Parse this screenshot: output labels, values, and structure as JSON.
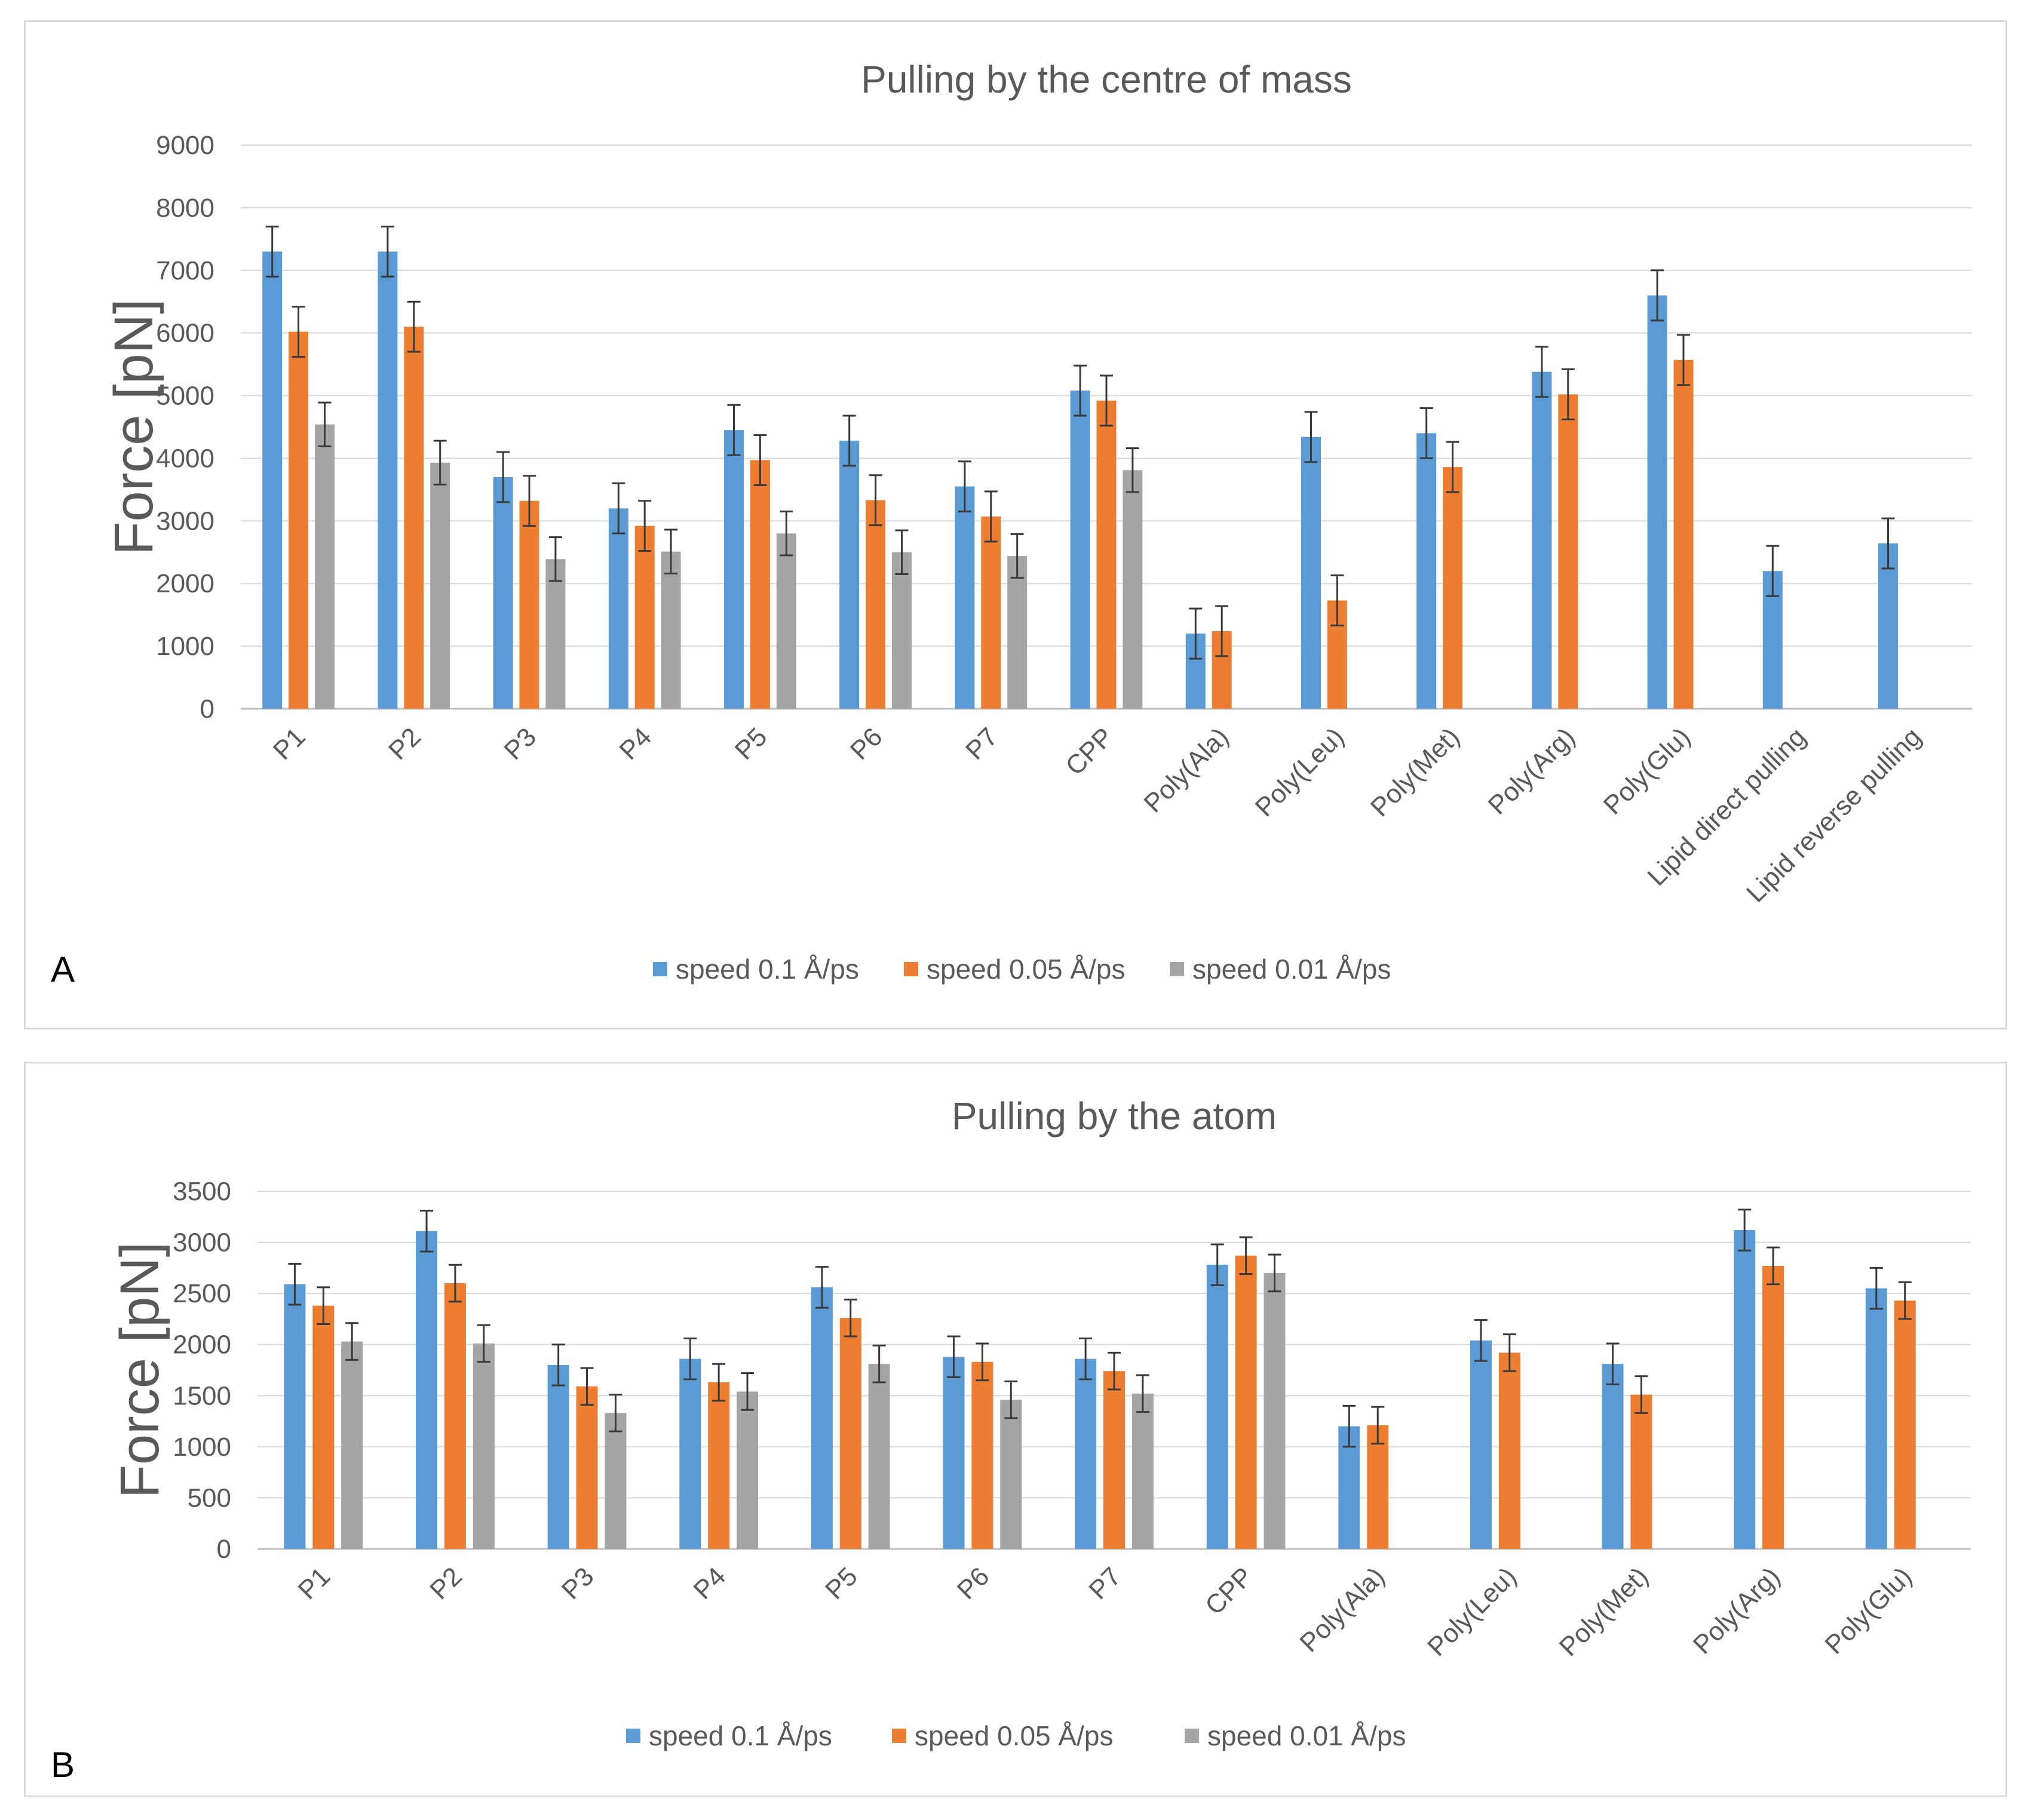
{
  "panels": [
    {
      "letter": "A",
      "chart_data": {
        "type": "bar",
        "title": "Pulling by the centre of mass",
        "xlabel": "",
        "ylabel": "Force [pN]",
        "ylim": [
          0,
          9000
        ],
        "yticks": [
          0,
          1000,
          2000,
          3000,
          4000,
          5000,
          6000,
          7000,
          8000,
          9000
        ],
        "grid": true,
        "legend_position": "bottom",
        "categories": [
          "P1",
          "P2",
          "P3",
          "P4",
          "P5",
          "P6",
          "P7",
          "CPP",
          "Poly(Ala)",
          "Poly(Leu)",
          "Poly(Met)",
          "Poly(Arg)",
          "Poly(Glu)",
          "Lipid direct pulling",
          "Lipid reverse pulling"
        ],
        "series": [
          {
            "name": "speed 0.1 Å/ps",
            "color": "#5b9bd5",
            "values": [
              7300,
              7300,
              3700,
              3200,
              4450,
              4280,
              3550,
              5080,
              1200,
              4340,
              4400,
              5380,
              6600,
              2200,
              2640
            ],
            "errors": [
              400,
              400,
              400,
              400,
              400,
              400,
              400,
              400,
              400,
              400,
              400,
              400,
              400,
              400,
              400
            ]
          },
          {
            "name": "speed 0.05 Å/ps",
            "color": "#ed7d31",
            "values": [
              6020,
              6100,
              3320,
              2920,
              3970,
              3330,
              3070,
              4920,
              1240,
              1730,
              3860,
              5020,
              5570,
              null,
              null
            ],
            "errors": [
              400,
              400,
              400,
              400,
              400,
              400,
              400,
              400,
              400,
              400,
              400,
              400,
              400,
              null,
              null
            ]
          },
          {
            "name": "speed 0.01 Å/ps",
            "color": "#a5a5a5",
            "values": [
              4540,
              3930,
              2390,
              2510,
              2800,
              2500,
              2440,
              3810,
              null,
              null,
              null,
              null,
              null,
              null,
              null
            ],
            "errors": [
              350,
              350,
              350,
              350,
              350,
              350,
              350,
              350,
              null,
              null,
              null,
              null,
              null,
              null,
              null
            ]
          }
        ]
      }
    },
    {
      "letter": "B",
      "chart_data": {
        "type": "bar",
        "title": "Pulling by the atom",
        "xlabel": "",
        "ylabel": "Force [pN]",
        "ylim": [
          0,
          3500
        ],
        "yticks": [
          0,
          500,
          1000,
          1500,
          2000,
          2500,
          3000,
          3500
        ],
        "grid": true,
        "legend_position": "bottom",
        "categories": [
          "P1",
          "P2",
          "P3",
          "P4",
          "P5",
          "P6",
          "P7",
          "CPP",
          "Poly(Ala)",
          "Poly(Leu)",
          "Poly(Met)",
          "Poly(Arg)",
          "Poly(Glu)"
        ],
        "series": [
          {
            "name": "speed 0.1 Å/ps",
            "color": "#5b9bd5",
            "values": [
              2590,
              3110,
              1800,
              1860,
              2560,
              1880,
              1860,
              2780,
              1200,
              2040,
              1810,
              3120,
              2550
            ],
            "errors": [
              200,
              200,
              200,
              200,
              200,
              200,
              200,
              200,
              200,
              200,
              200,
              200,
              200
            ]
          },
          {
            "name": "speed 0.05 Å/ps",
            "color": "#ed7d31",
            "values": [
              2380,
              2600,
              1590,
              1630,
              2260,
              1830,
              1740,
              2870,
              1210,
              1920,
              1510,
              2770,
              2430
            ],
            "errors": [
              180,
              180,
              180,
              180,
              180,
              180,
              180,
              180,
              180,
              180,
              180,
              180,
              180
            ]
          },
          {
            "name": "speed 0.01 Å/ps",
            "color": "#a5a5a5",
            "values": [
              2030,
              2010,
              1330,
              1540,
              1810,
              1460,
              1520,
              2700,
              null,
              null,
              null,
              null,
              null
            ],
            "errors": [
              180,
              180,
              180,
              180,
              180,
              180,
              180,
              180,
              null,
              null,
              null,
              null,
              null
            ]
          }
        ]
      }
    }
  ]
}
